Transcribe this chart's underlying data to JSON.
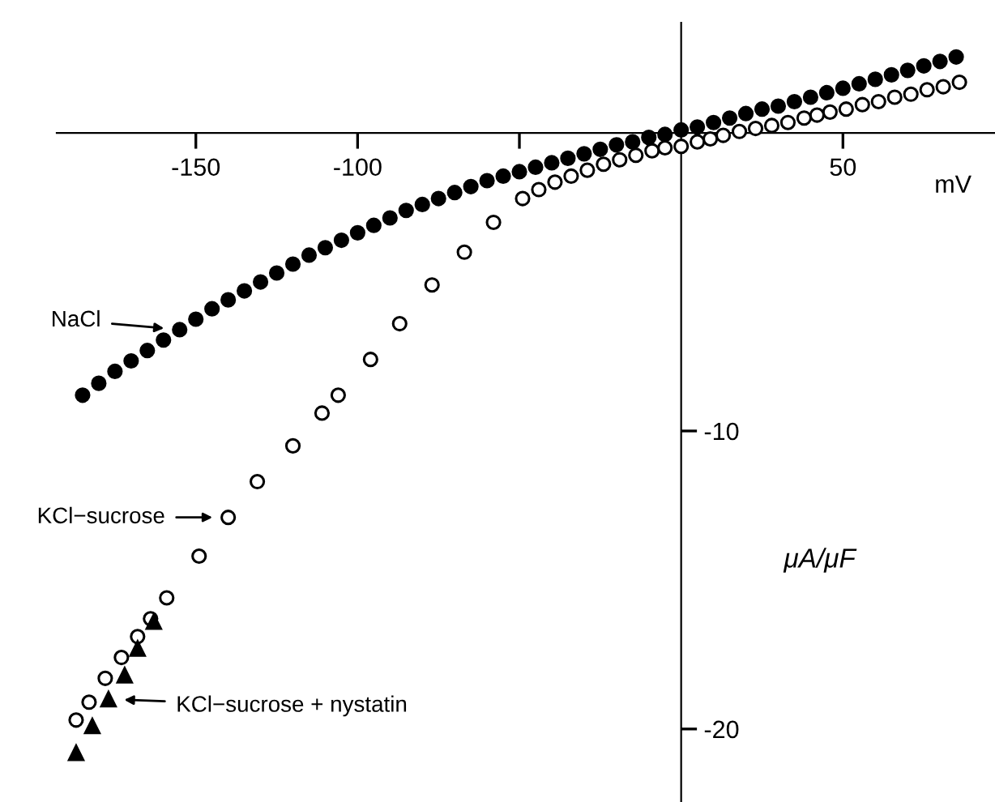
{
  "chart_data": {
    "type": "scatter",
    "xlabel": "mV",
    "ylabel": "μA/μF",
    "xlim": [
      -193,
      97
    ],
    "ylim": [
      -22.45,
      3.7
    ],
    "xticks": [
      {
        "value": -150,
        "label": "-150"
      },
      {
        "value": -100,
        "label": "-100"
      },
      {
        "value": -50,
        "label": null
      },
      {
        "value": 50,
        "label": "50"
      }
    ],
    "yticks": [
      {
        "value": -10,
        "label": "-10"
      },
      {
        "value": -20,
        "label": "-20"
      }
    ],
    "grid": false,
    "legend": false,
    "series": [
      {
        "color": "#000000",
        "marker": "circle",
        "x": [
          -185,
          -180,
          -175,
          -170,
          -165,
          -160,
          -155,
          -150,
          -145,
          -140,
          -135,
          -130,
          -125,
          -120,
          -115,
          -110,
          -105,
          -100,
          -95,
          -90,
          -85,
          -80,
          -75,
          -70,
          -65,
          -60,
          -55,
          -50,
          -45,
          -40,
          -35,
          -30,
          -25,
          -20,
          -15,
          -10,
          -5,
          0,
          5,
          10,
          15,
          20,
          25,
          30,
          35,
          40,
          45,
          50,
          55,
          60,
          65,
          70,
          75,
          80,
          85
        ],
        "values": [
          -8.8,
          -8.4,
          -8.0,
          -7.65,
          -7.3,
          -6.95,
          -6.6,
          -6.25,
          -5.9,
          -5.6,
          -5.3,
          -5.0,
          -4.7,
          -4.4,
          -4.1,
          -3.85,
          -3.6,
          -3.35,
          -3.1,
          -2.85,
          -2.6,
          -2.4,
          -2.2,
          -2.0,
          -1.8,
          -1.6,
          -1.45,
          -1.3,
          -1.15,
          -1.0,
          -0.85,
          -0.7,
          -0.55,
          -0.4,
          -0.3,
          -0.15,
          -0.05,
          0.1,
          0.2,
          0.35,
          0.5,
          0.65,
          0.8,
          0.9,
          1.05,
          1.2,
          1.35,
          1.5,
          1.65,
          1.8,
          1.95,
          2.1,
          2.25,
          2.4,
          2.55
        ]
      },
      {
        "color": "#ffffff",
        "marker": "circle",
        "x": [
          -187,
          -183,
          -178,
          -173,
          -168,
          -164,
          -159,
          -149,
          -140,
          -131,
          -120,
          -111,
          -106,
          -96,
          -87,
          -77,
          -67,
          -58,
          -49,
          -44,
          -39,
          -34,
          -29,
          -24,
          -19,
          -14,
          -9,
          -5,
          0,
          5,
          9,
          13,
          18,
          23,
          28,
          33,
          38,
          42,
          46,
          51,
          56,
          61,
          66,
          71,
          76,
          81,
          86
        ],
        "values": [
          -19.7,
          -19.1,
          -18.3,
          -17.6,
          -16.9,
          -16.3,
          -15.6,
          -14.2,
          -12.9,
          -11.7,
          -10.5,
          -9.4,
          -8.8,
          -7.6,
          -6.4,
          -5.1,
          -4.0,
          -3.0,
          -2.2,
          -1.9,
          -1.65,
          -1.45,
          -1.25,
          -1.05,
          -0.9,
          -0.75,
          -0.6,
          -0.5,
          -0.45,
          -0.3,
          -0.2,
          -0.08,
          0.05,
          0.15,
          0.25,
          0.35,
          0.5,
          0.6,
          0.7,
          0.8,
          0.95,
          1.05,
          1.2,
          1.3,
          1.45,
          1.55,
          1.7
        ]
      },
      {
        "color": "#000000",
        "marker": "triangle",
        "x": [
          -163,
          -168,
          -172,
          -177,
          -182,
          -187
        ],
        "values": [
          -16.4,
          -17.3,
          -18.2,
          -19.0,
          -19.9,
          -20.8
        ]
      }
    ],
    "annotations": [
      "NaCl",
      "KCl−sucrose",
      "KCl−sucrose + nystatin"
    ]
  }
}
